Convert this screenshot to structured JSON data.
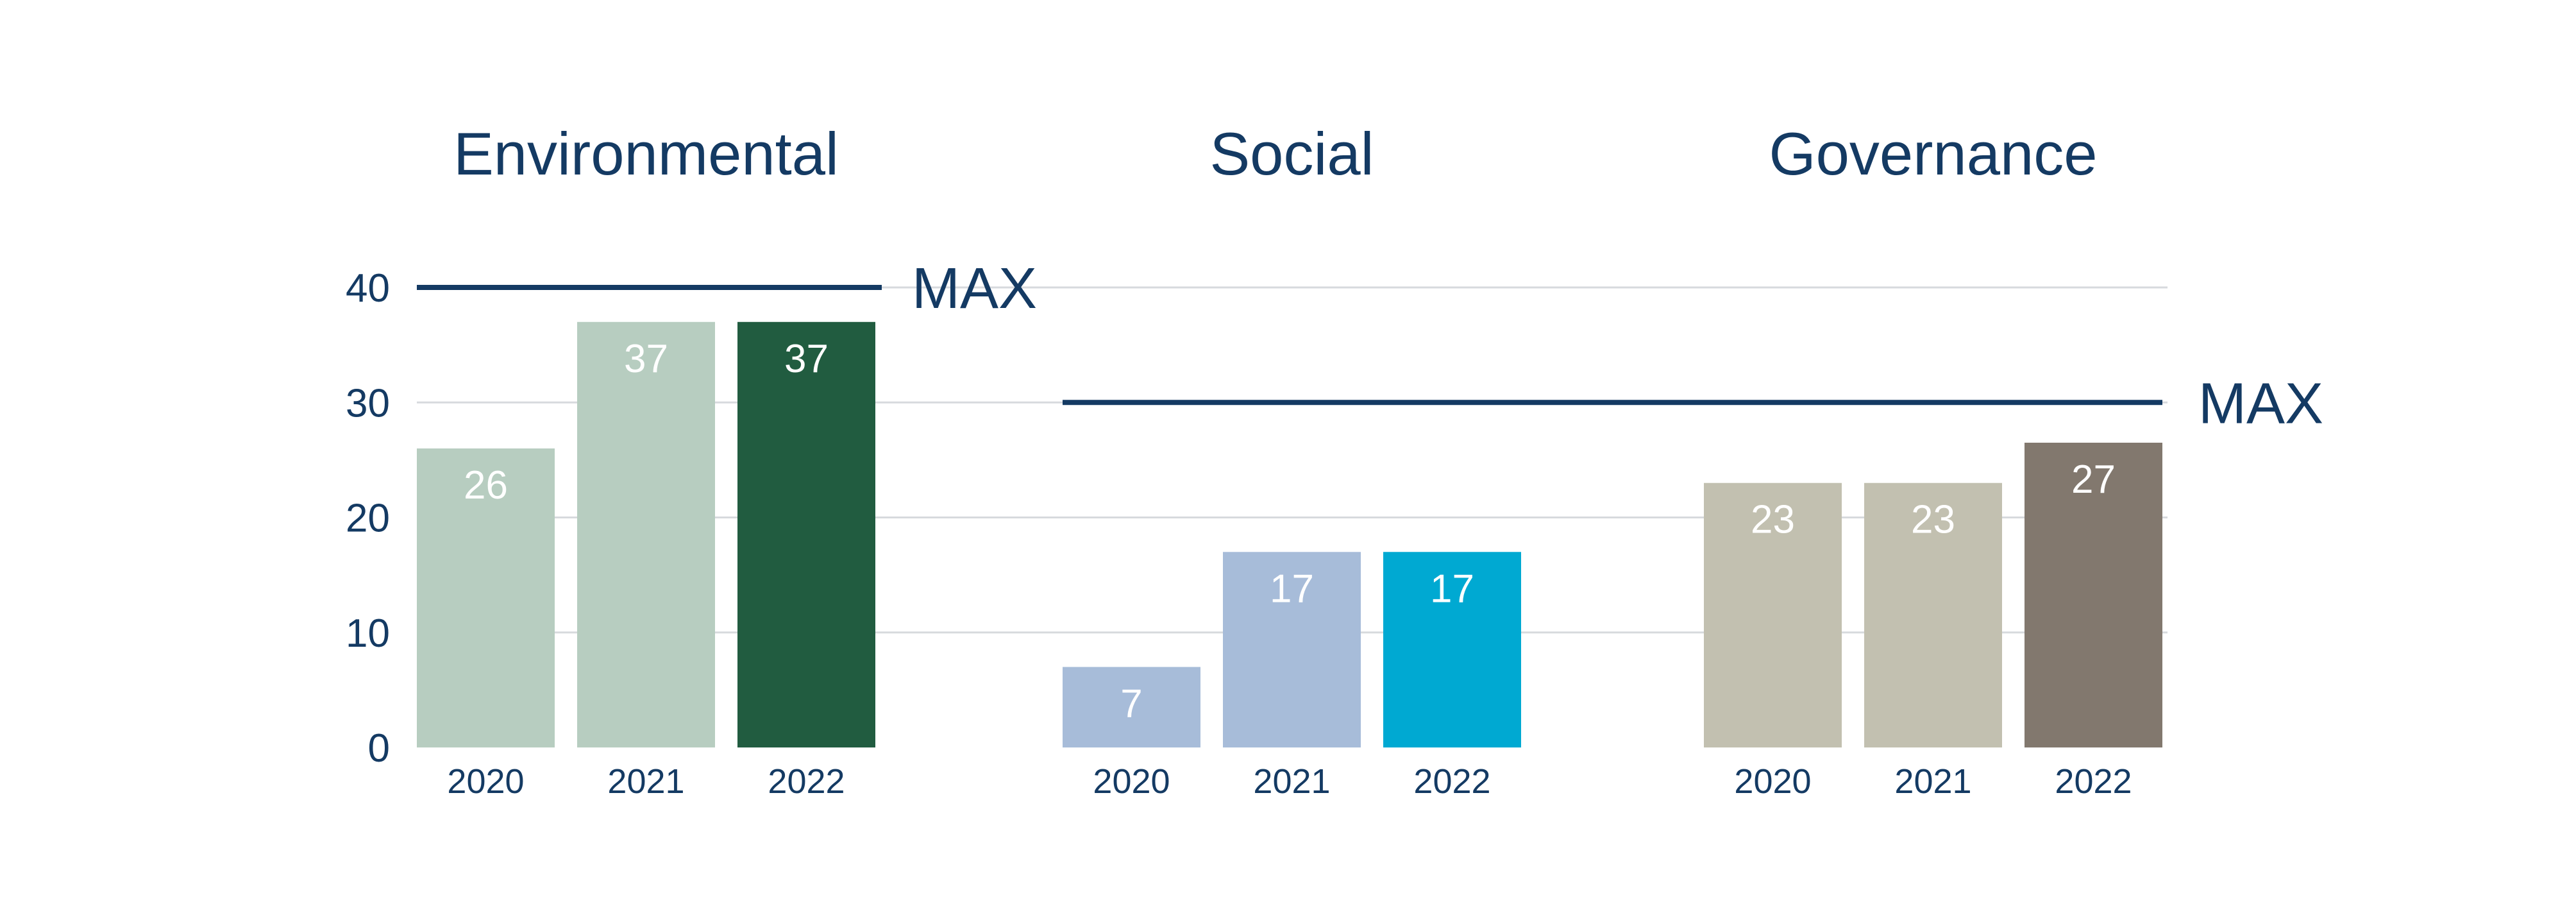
{
  "chart_data": {
    "type": "bar",
    "ylim": [
      0,
      40
    ],
    "yticks": [
      0,
      10,
      20,
      30,
      40
    ],
    "grid": true,
    "max_label": "MAX",
    "groups": [
      {
        "title": "Environmental",
        "max": 40,
        "categories": [
          "2020",
          "2021",
          "2022"
        ],
        "values": [
          26,
          37,
          37
        ],
        "labels": [
          "26",
          "37",
          "37"
        ],
        "colors": [
          "#b7cdc0",
          "#b7cdc0",
          "#215c40"
        ]
      },
      {
        "title": "Social",
        "max": 30,
        "categories": [
          "2020",
          "2021",
          "2022"
        ],
        "values": [
          7,
          17,
          17
        ],
        "labels": [
          "7",
          "17",
          "17"
        ],
        "colors": [
          "#a7bcd9",
          "#a7bcd9",
          "#00a9d2"
        ]
      },
      {
        "title": "Governance",
        "max": 30,
        "categories": [
          "2020",
          "2021",
          "2022"
        ],
        "values": [
          23,
          23,
          26.5
        ],
        "labels": [
          "23",
          "23",
          "27"
        ],
        "colors": [
          "#c2c0b0",
          "#c2c0b0",
          "#82786e"
        ]
      }
    ]
  }
}
